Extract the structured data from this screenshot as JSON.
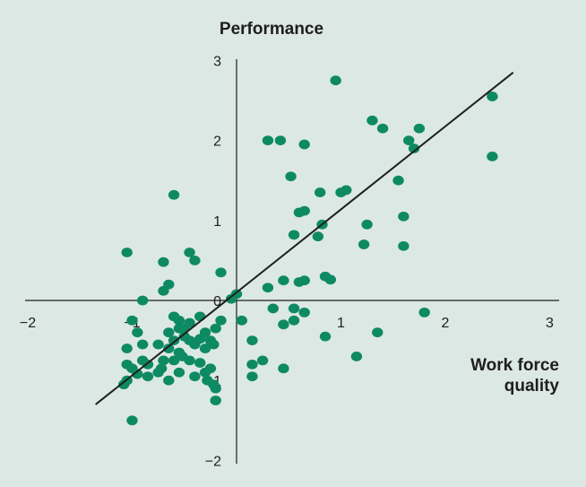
{
  "chart_data": {
    "type": "scatter",
    "title": "",
    "ylabel": "Performance",
    "xlabel_lines": [
      "Work force",
      "quality"
    ],
    "xlim": [
      -2,
      3
    ],
    "ylim": [
      -2,
      3
    ],
    "xticks": [
      "−2",
      "−1",
      "0",
      "1",
      "2",
      "3"
    ],
    "yticks": [
      "3",
      "2",
      "1",
      "0",
      "−1",
      "−2"
    ],
    "grid": false,
    "colors": {
      "background": "#dce8e4",
      "point": "#0e8a63",
      "axis": "#1e1e1e",
      "trend": "#1e1e1e"
    },
    "trendline": {
      "x": [
        -1.35,
        2.65
      ],
      "y": [
        -1.3,
        2.85
      ]
    },
    "points": [
      [
        0.95,
        2.75
      ],
      [
        2.45,
        2.55
      ],
      [
        1.3,
        2.25
      ],
      [
        1.4,
        2.15
      ],
      [
        1.75,
        2.15
      ],
      [
        0.3,
        2.0
      ],
      [
        0.42,
        2.0
      ],
      [
        0.65,
        1.95
      ],
      [
        1.65,
        2.0
      ],
      [
        1.7,
        1.9
      ],
      [
        2.45,
        1.8
      ],
      [
        0.52,
        1.55
      ],
      [
        1.55,
        1.5
      ],
      [
        0.8,
        1.35
      ],
      [
        1.0,
        1.35
      ],
      [
        1.05,
        1.38
      ],
      [
        -0.6,
        1.32
      ],
      [
        0.6,
        1.1
      ],
      [
        0.65,
        1.12
      ],
      [
        1.6,
        1.05
      ],
      [
        1.25,
        0.95
      ],
      [
        0.82,
        0.95
      ],
      [
        0.55,
        0.82
      ],
      [
        0.78,
        0.8
      ],
      [
        1.22,
        0.7
      ],
      [
        1.6,
        0.68
      ],
      [
        -1.05,
        0.6
      ],
      [
        -0.45,
        0.6
      ],
      [
        -0.4,
        0.5
      ],
      [
        -0.7,
        0.48
      ],
      [
        -0.15,
        0.35
      ],
      [
        0.85,
        0.3
      ],
      [
        0.9,
        0.26
      ],
      [
        0.45,
        0.25
      ],
      [
        0.6,
        0.23
      ],
      [
        0.65,
        0.25
      ],
      [
        0.3,
        0.16
      ],
      [
        -0.65,
        0.2
      ],
      [
        -0.7,
        0.12
      ],
      [
        0.0,
        0.08
      ],
      [
        -0.05,
        0.02
      ],
      [
        -0.9,
        0.0
      ],
      [
        0.35,
        -0.1
      ],
      [
        0.55,
        -0.1
      ],
      [
        0.65,
        -0.15
      ],
      [
        1.8,
        -0.15
      ],
      [
        -0.6,
        -0.2
      ],
      [
        -0.55,
        -0.25
      ],
      [
        -1.0,
        -0.25
      ],
      [
        -0.45,
        -0.28
      ],
      [
        -0.35,
        -0.2
      ],
      [
        -0.15,
        -0.25
      ],
      [
        -0.55,
        -0.35
      ],
      [
        -0.5,
        -0.35
      ],
      [
        -0.65,
        -0.4
      ],
      [
        -0.3,
        -0.4
      ],
      [
        -0.2,
        -0.35
      ],
      [
        0.05,
        -0.25
      ],
      [
        0.45,
        -0.3
      ],
      [
        0.55,
        -0.25
      ],
      [
        -0.95,
        -0.4
      ],
      [
        -0.6,
        -0.5
      ],
      [
        -0.5,
        -0.45
      ],
      [
        -0.45,
        -0.5
      ],
      [
        -0.4,
        -0.55
      ],
      [
        -0.35,
        -0.48
      ],
      [
        -0.25,
        -0.5
      ],
      [
        -0.9,
        -0.55
      ],
      [
        -0.75,
        -0.55
      ],
      [
        -0.65,
        -0.6
      ],
      [
        -0.55,
        -0.65
      ],
      [
        -0.3,
        -0.6
      ],
      [
        -0.22,
        -0.55
      ],
      [
        0.15,
        -0.5
      ],
      [
        0.85,
        -0.45
      ],
      [
        1.35,
        -0.4
      ],
      [
        -1.05,
        -0.6
      ],
      [
        -0.9,
        -0.75
      ],
      [
        -0.85,
        -0.8
      ],
      [
        -0.7,
        -0.75
      ],
      [
        -0.6,
        -0.75
      ],
      [
        -0.52,
        -0.7
      ],
      [
        -0.45,
        -0.75
      ],
      [
        -0.35,
        -0.78
      ],
      [
        -0.25,
        -0.85
      ],
      [
        -0.3,
        -0.9
      ],
      [
        -1.05,
        -0.8
      ],
      [
        -1.0,
        -0.85
      ],
      [
        -0.95,
        -0.92
      ],
      [
        -0.85,
        -0.95
      ],
      [
        -0.75,
        -0.9
      ],
      [
        -0.72,
        -0.85
      ],
      [
        -0.65,
        -1.0
      ],
      [
        -0.55,
        -0.9
      ],
      [
        -0.4,
        -0.95
      ],
      [
        -0.28,
        -1.0
      ],
      [
        -0.22,
        -1.05
      ],
      [
        -1.05,
        -1.0
      ],
      [
        -1.08,
        -1.05
      ],
      [
        -0.2,
        -1.1
      ],
      [
        -0.2,
        -1.25
      ],
      [
        0.15,
        -0.8
      ],
      [
        0.15,
        -0.95
      ],
      [
        0.25,
        -0.75
      ],
      [
        0.45,
        -0.85
      ],
      [
        1.15,
        -0.7
      ],
      [
        -1.0,
        -1.5
      ]
    ]
  }
}
